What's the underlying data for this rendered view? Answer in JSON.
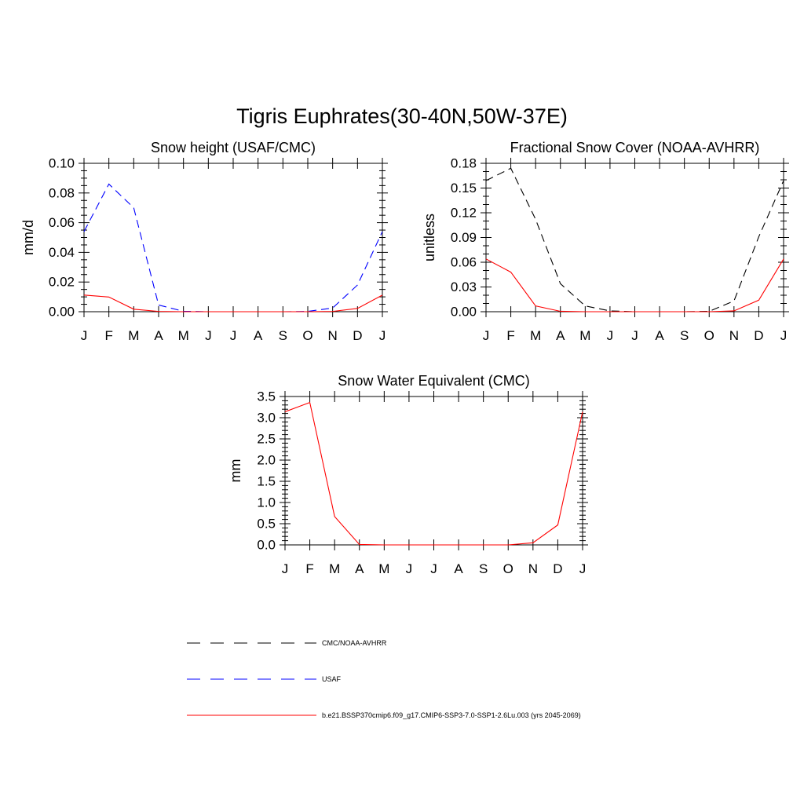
{
  "title": "Tigris Euphrates(30-40N,50W-37E)",
  "chart_data": [
    {
      "type": "line",
      "title": "Snow height (USAF/CMC)",
      "ylabel": "mm/d",
      "xlabel": "",
      "categories": [
        "J",
        "F",
        "M",
        "A",
        "M",
        "J",
        "J",
        "A",
        "S",
        "O",
        "N",
        "D",
        "J"
      ],
      "ylim": [
        0,
        0.1
      ],
      "yticks": [
        0.0,
        0.02,
        0.04,
        0.06,
        0.08,
        0.1
      ],
      "ytick_labels": [
        "0.00",
        "0.02",
        "0.04",
        "0.06",
        "0.08",
        "0.10"
      ],
      "grid": false,
      "series": [
        {
          "name": "CMC/NOAA-AVHRR",
          "color": "#000000",
          "dash": "dashed",
          "values": [
            0,
            0,
            0,
            0,
            0,
            0,
            0,
            0,
            0,
            0,
            0,
            0,
            0
          ]
        },
        {
          "name": "USAF",
          "color": "#0000ff",
          "dash": "dashed",
          "values": [
            0.054,
            0.086,
            0.07,
            0.0045,
            0.0003,
            0,
            0,
            0,
            0,
            0.0002,
            0.0025,
            0.018,
            0.054
          ]
        },
        {
          "name": "b.e21.BSSP370cmip6.f09_g17.CMIP6-SSP3-7.0-SSP1-2.6Lu.003 (yrs 2045-2069)",
          "color": "#ff0000",
          "dash": "solid",
          "values": [
            0.0112,
            0.0099,
            0.0017,
            0.0002,
            0,
            0,
            0,
            0,
            0,
            0,
            0.0002,
            0.0022,
            0.0112
          ]
        }
      ]
    },
    {
      "type": "line",
      "title": "Fractional Snow Cover (NOAA-AVHRR)",
      "ylabel": "unitless",
      "xlabel": "",
      "categories": [
        "J",
        "F",
        "M",
        "A",
        "M",
        "J",
        "J",
        "A",
        "S",
        "O",
        "N",
        "D",
        "J"
      ],
      "ylim": [
        0,
        0.18
      ],
      "yticks": [
        0.0,
        0.03,
        0.06,
        0.09,
        0.12,
        0.15,
        0.18
      ],
      "ytick_labels": [
        "0.00",
        "0.03",
        "0.06",
        "0.09",
        "0.12",
        "0.15",
        "0.18"
      ],
      "grid": false,
      "series": [
        {
          "name": "CMC/NOAA-AVHRR",
          "color": "#000000",
          "dash": "dashed",
          "values": [
            0.159,
            0.174,
            0.112,
            0.034,
            0.007,
            0.001,
            0,
            0,
            0,
            0.0005,
            0.013,
            0.091,
            0.159
          ]
        },
        {
          "name": "b.e21.BSSP370cmip6.f09_g17.CMIP6-SSP3-7.0-SSP1-2.6Lu.003 (yrs 2045-2069)",
          "color": "#ff0000",
          "dash": "solid",
          "values": [
            0.064,
            0.048,
            0.007,
            0.0005,
            0,
            0,
            0,
            0,
            0,
            0,
            0.001,
            0.014,
            0.064
          ]
        }
      ]
    },
    {
      "type": "line",
      "title": "Snow Water Equivalent (CMC)",
      "ylabel": "mm",
      "xlabel": "",
      "categories": [
        "J",
        "F",
        "M",
        "A",
        "M",
        "J",
        "J",
        "A",
        "S",
        "O",
        "N",
        "D",
        "J"
      ],
      "ylim": [
        0,
        3.5
      ],
      "yticks": [
        0.0,
        0.5,
        1.0,
        1.5,
        2.0,
        2.5,
        3.0,
        3.5
      ],
      "ytick_labels": [
        "0.0",
        "0.5",
        "1.0",
        "1.5",
        "2.0",
        "2.5",
        "3.0",
        "3.5"
      ],
      "grid": false,
      "series": [
        {
          "name": "CMC/NOAA-AVHRR",
          "color": "#000000",
          "dash": "dashed",
          "values": [
            0,
            0,
            0,
            0,
            0,
            0,
            0,
            0,
            0,
            0,
            0,
            0,
            0
          ]
        },
        {
          "name": "b.e21.BSSP370cmip6.f09_g17.CMIP6-SSP3-7.0-SSP1-2.6Lu.003 (yrs 2045-2069)",
          "color": "#ff0000",
          "dash": "solid",
          "values": [
            3.14,
            3.36,
            0.67,
            0.01,
            0,
            0,
            0,
            0,
            0,
            0,
            0.05,
            0.47,
            3.14
          ]
        }
      ]
    }
  ],
  "legend": {
    "position": "bottom",
    "items": [
      {
        "label": "CMC/NOAA-AVHRR",
        "color": "#000000",
        "dash": "dashed"
      },
      {
        "label": "USAF",
        "color": "#0000ff",
        "dash": "dashed"
      },
      {
        "label": "b.e21.BSSP370cmip6.f09_g17.CMIP6-SSP3-7.0-SSP1-2.6Lu.003 (yrs 2045-2069)",
        "color": "#ff0000",
        "dash": "solid"
      }
    ]
  }
}
